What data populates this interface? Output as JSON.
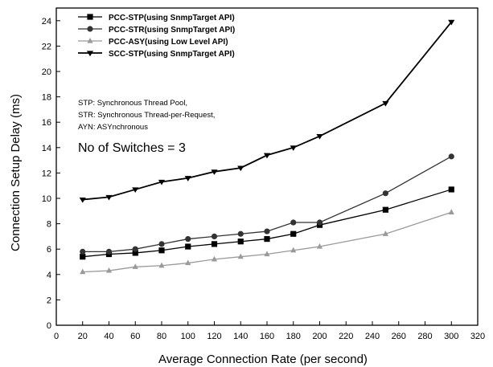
{
  "chart_data": {
    "type": "line",
    "xlabel": "Average Connection Rate (per second)",
    "ylabel": "Connection Setup Delay (ms)",
    "xlim": [
      0,
      320
    ],
    "ylim": [
      0,
      25
    ],
    "x_ticks": [
      0,
      20,
      40,
      60,
      80,
      100,
      120,
      140,
      160,
      180,
      200,
      220,
      240,
      260,
      280,
      300,
      320
    ],
    "y_ticks": [
      0,
      2,
      4,
      6,
      8,
      10,
      12,
      14,
      16,
      18,
      20,
      22,
      24
    ],
    "grid": false,
    "legend_position": "top-left",
    "x": [
      20,
      40,
      60,
      80,
      100,
      120,
      140,
      160,
      180,
      200,
      250,
      300
    ],
    "series": [
      {
        "name": "PCC-STP(using SnmpTarget API)",
        "marker": "square",
        "color": "#000000",
        "values": [
          5.4,
          5.6,
          5.7,
          5.9,
          6.2,
          6.4,
          6.6,
          6.8,
          7.2,
          7.9,
          9.1,
          10.7
        ]
      },
      {
        "name": "PCC-STR(using SnmpTarget API)",
        "marker": "circle",
        "color": "#333333",
        "values": [
          5.8,
          5.8,
          6.0,
          6.4,
          6.8,
          7.0,
          7.2,
          7.4,
          8.1,
          8.1,
          10.4,
          13.3
        ]
      },
      {
        "name": "PCC-ASY(using Low Level API)",
        "marker": "triangle-up",
        "color": "#9a9a9a",
        "values": [
          4.2,
          4.3,
          4.6,
          4.7,
          4.9,
          5.2,
          5.4,
          5.6,
          5.9,
          6.2,
          7.2,
          8.9
        ]
      },
      {
        "name": "SCC-STP(using SnmpTarget API)",
        "marker": "triangle-down",
        "color": "#000000",
        "values": [
          9.9,
          10.1,
          10.7,
          11.3,
          11.6,
          12.1,
          12.4,
          13.4,
          14.0,
          14.9,
          17.5,
          23.9
        ]
      }
    ],
    "notes": [
      "STP: Synchronous Thread Pool,",
      "STR: Synchronous Thread-per-Request,",
      "AYN: ASYnchronous"
    ],
    "annotation": "No of Switches = 3"
  }
}
